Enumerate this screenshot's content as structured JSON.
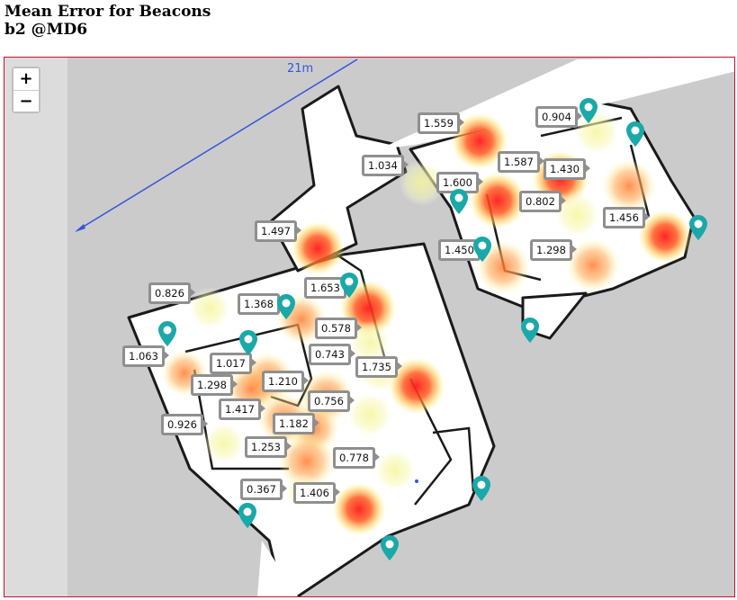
{
  "header": {
    "title": "Mean Error for Beacons",
    "subtitle": "b2 @MD6"
  },
  "map": {
    "zoom_in_label": "+",
    "zoom_out_label": "−",
    "scale_label": "21m",
    "colors": {
      "scale_line": "#3355dd",
      "pin": "#1aa8a8",
      "frame": "#c8102e",
      "label_border": "#8f8f8f"
    },
    "icons": {
      "beacon": "map-pin-icon"
    },
    "labels": [
      "1.559",
      "0.904",
      "1.034",
      "1.587",
      "1.430",
      "1.600",
      "0.802",
      "1.456",
      "1.497",
      "1.450",
      "1.298",
      "0.826",
      "1.653",
      "1.368",
      "0.578",
      "1.063",
      "1.017",
      "0.743",
      "1.735",
      "1.298",
      "1.210",
      "0.756",
      "1.417",
      "0.926",
      "1.182",
      "1.253",
      "0.778",
      "0.367",
      "1.406"
    ]
  }
}
